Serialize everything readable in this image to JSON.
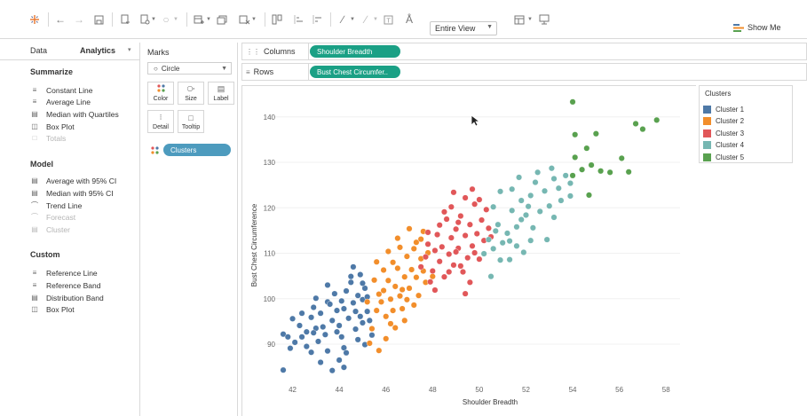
{
  "toolbar": {
    "view_select": "Entire View",
    "show_me_label": "Show Me"
  },
  "left_pane": {
    "tabs": [
      {
        "label": "Data"
      },
      {
        "label": "Analytics"
      }
    ],
    "sections": {
      "summarize": {
        "title": "Summarize",
        "items": [
          {
            "label": "Constant Line",
            "enabled": true
          },
          {
            "label": "Average Line",
            "enabled": true
          },
          {
            "label": "Median with Quartiles",
            "enabled": true
          },
          {
            "label": "Box Plot",
            "enabled": true
          },
          {
            "label": "Totals",
            "enabled": false
          }
        ]
      },
      "model": {
        "title": "Model",
        "items": [
          {
            "label": "Average with 95% CI",
            "enabled": true
          },
          {
            "label": "Median with 95% CI",
            "enabled": true
          },
          {
            "label": "Trend Line",
            "enabled": true
          },
          {
            "label": "Forecast",
            "enabled": false
          },
          {
            "label": "Cluster",
            "enabled": false
          }
        ]
      },
      "custom": {
        "title": "Custom",
        "items": [
          {
            "label": "Reference Line",
            "enabled": true
          },
          {
            "label": "Reference Band",
            "enabled": true
          },
          {
            "label": "Distribution Band",
            "enabled": true
          },
          {
            "label": "Box Plot",
            "enabled": true
          }
        ]
      }
    }
  },
  "marks_card": {
    "title": "Marks",
    "mark_type": "Circle",
    "properties": [
      "Color",
      "Size",
      "Label",
      "Detail",
      "Tooltip"
    ],
    "color_pill": "Clusters"
  },
  "shelves": {
    "columns_label": "Columns",
    "columns_pill": "Shoulder Breadth",
    "rows_label": "Rows",
    "rows_pill": "Bust Chest Circumfer.."
  },
  "legend": {
    "title": "Clusters",
    "items": [
      {
        "label": "Cluster 1",
        "color": "#4e79a7"
      },
      {
        "label": "Cluster 2",
        "color": "#f28e2b"
      },
      {
        "label": "Cluster 3",
        "color": "#e15759"
      },
      {
        "label": "Cluster 4",
        "color": "#76b7b2"
      },
      {
        "label": "Cluster 5",
        "color": "#59a14f"
      }
    ]
  },
  "chart_data": {
    "type": "scatter",
    "xlabel": "Shoulder Breadth",
    "ylabel": "Bust Chest Circumference",
    "xlim": [
      40.8,
      58.6
    ],
    "ylim": [
      82.0,
      146.2
    ],
    "xticks": [
      42,
      44,
      46,
      48,
      50,
      52,
      54,
      56,
      58
    ],
    "yticks": [
      90,
      100,
      110,
      120,
      130,
      140
    ],
    "grid": true,
    "series": [
      {
        "name": "Cluster 1",
        "color": "#4e79a7",
        "points": [
          [
            41.6,
            84.3
          ],
          [
            41.6,
            92.2
          ],
          [
            41.8,
            91.6
          ],
          [
            42.1,
            90.4
          ],
          [
            41.9,
            89.1
          ],
          [
            42.0,
            95.6
          ],
          [
            42.3,
            94.1
          ],
          [
            42.4,
            91.6
          ],
          [
            42.6,
            92.7
          ],
          [
            42.8,
            95.9
          ],
          [
            42.6,
            89.5
          ],
          [
            42.8,
            88.2
          ],
          [
            42.9,
            98.1
          ],
          [
            43.2,
            96.8
          ],
          [
            43.0,
            93.5
          ],
          [
            43.1,
            90.6
          ],
          [
            43.4,
            92.1
          ],
          [
            43.5,
            88.5
          ],
          [
            43.2,
            86.0
          ],
          [
            43.7,
            95.2
          ],
          [
            43.5,
            99.3
          ],
          [
            43.8,
            101.1
          ],
          [
            43.9,
            97.4
          ],
          [
            44.0,
            94.1
          ],
          [
            44.1,
            91.6
          ],
          [
            44.2,
            89.2
          ],
          [
            44.0,
            86.5
          ],
          [
            44.2,
            97.8
          ],
          [
            44.3,
            101.7
          ],
          [
            44.5,
            103.6
          ],
          [
            44.6,
            99.1
          ],
          [
            44.4,
            95.7
          ],
          [
            44.7,
            93.3
          ],
          [
            44.8,
            91.0
          ],
          [
            44.9,
            96.1
          ],
          [
            45.0,
            99.8
          ],
          [
            45.1,
            102.3
          ],
          [
            45.2,
            97.2
          ],
          [
            45.0,
            94.7
          ],
          [
            44.8,
            100.7
          ],
          [
            44.5,
            104.9
          ],
          [
            44.6,
            107.0
          ],
          [
            44.3,
            88.1
          ],
          [
            43.9,
            92.7
          ],
          [
            43.6,
            98.8
          ],
          [
            42.9,
            92.5
          ],
          [
            43.3,
            93.8
          ],
          [
            44.1,
            99.5
          ],
          [
            44.7,
            97.2
          ],
          [
            45.3,
            95.2
          ],
          [
            45.4,
            92.0
          ],
          [
            45.1,
            89.9
          ],
          [
            44.2,
            84.9
          ],
          [
            43.7,
            84.2
          ],
          [
            42.4,
            96.8
          ],
          [
            43.0,
            100.1
          ],
          [
            43.5,
            103.0
          ],
          [
            44.9,
            105.3
          ],
          [
            45.0,
            103.4
          ],
          [
            45.2,
            100.4
          ]
        ]
      },
      {
        "name": "Cluster 2",
        "color": "#f28e2b",
        "points": [
          [
            45.4,
            93.4
          ],
          [
            45.6,
            97.4
          ],
          [
            45.8,
            99.3
          ],
          [
            45.9,
            101.8
          ],
          [
            46.0,
            96.1
          ],
          [
            46.1,
            104.0
          ],
          [
            46.2,
            99.9
          ],
          [
            46.4,
            102.7
          ],
          [
            46.5,
            106.7
          ],
          [
            46.3,
            108.0
          ],
          [
            46.6,
            100.6
          ],
          [
            46.7,
            97.8
          ],
          [
            46.8,
            104.8
          ],
          [
            46.9,
            109.3
          ],
          [
            47.0,
            102.3
          ],
          [
            47.1,
            106.4
          ],
          [
            47.2,
            111.0
          ],
          [
            47.3,
            104.7
          ],
          [
            47.4,
            100.7
          ],
          [
            47.5,
            108.8
          ],
          [
            47.6,
            114.8
          ],
          [
            47.7,
            103.6
          ],
          [
            47.2,
            98.6
          ],
          [
            46.8,
            95.2
          ],
          [
            46.4,
            93.6
          ],
          [
            46.0,
            91.2
          ],
          [
            45.7,
            88.6
          ],
          [
            45.3,
            90.2
          ],
          [
            46.5,
            113.3
          ],
          [
            47.0,
            115.4
          ],
          [
            47.3,
            112.4
          ],
          [
            46.1,
            110.4
          ],
          [
            45.9,
            106.3
          ],
          [
            45.5,
            104.1
          ],
          [
            45.7,
            101.0
          ],
          [
            46.3,
            97.4
          ],
          [
            46.9,
            99.8
          ],
          [
            47.6,
            106.1
          ],
          [
            47.8,
            110.1
          ],
          [
            48.0,
            104.9
          ],
          [
            45.6,
            108.1
          ],
          [
            46.7,
            102.0
          ],
          [
            47.5,
            113.1
          ],
          [
            46.2,
            94.5
          ],
          [
            45.2,
            99.3
          ],
          [
            46.6,
            111.3
          ]
        ]
      },
      {
        "name": "Cluster 3",
        "color": "#e15759",
        "points": [
          [
            47.5,
            107.0
          ],
          [
            47.7,
            109.2
          ],
          [
            47.8,
            112.0
          ],
          [
            48.0,
            106.1
          ],
          [
            48.1,
            110.6
          ],
          [
            48.2,
            114.1
          ],
          [
            48.3,
            108.2
          ],
          [
            48.4,
            111.4
          ],
          [
            48.5,
            104.8
          ],
          [
            48.6,
            117.5
          ],
          [
            48.7,
            109.8
          ],
          [
            48.8,
            113.4
          ],
          [
            48.9,
            107.4
          ],
          [
            49.0,
            115.3
          ],
          [
            49.1,
            111.1
          ],
          [
            49.2,
            118.2
          ],
          [
            49.3,
            105.9
          ],
          [
            49.4,
            113.9
          ],
          [
            49.5,
            109.0
          ],
          [
            49.6,
            116.3
          ],
          [
            49.7,
            111.6
          ],
          [
            49.8,
            120.8
          ],
          [
            49.9,
            114.3
          ],
          [
            50.0,
            108.7
          ],
          [
            50.1,
            117.3
          ],
          [
            50.2,
            112.8
          ],
          [
            50.3,
            119.6
          ],
          [
            50.4,
            115.5
          ],
          [
            49.4,
            122.2
          ],
          [
            49.7,
            124.1
          ],
          [
            48.8,
            120.2
          ],
          [
            48.3,
            116.2
          ],
          [
            47.9,
            103.7
          ],
          [
            48.7,
            105.9
          ],
          [
            49.2,
            107.2
          ],
          [
            49.8,
            110.1
          ],
          [
            50.0,
            121.8
          ],
          [
            49.6,
            103.6
          ],
          [
            48.5,
            119.1
          ],
          [
            49.1,
            116.8
          ],
          [
            50.5,
            113.6
          ],
          [
            47.8,
            114.6
          ],
          [
            48.1,
            101.9
          ],
          [
            49.4,
            101.1
          ],
          [
            48.9,
            123.4
          ],
          [
            49.0,
            110.3
          ]
        ]
      },
      {
        "name": "Cluster 4",
        "color": "#76b7b2",
        "points": [
          [
            50.2,
            109.9
          ],
          [
            50.4,
            113.0
          ],
          [
            50.6,
            111.0
          ],
          [
            50.8,
            116.3
          ],
          [
            51.0,
            112.3
          ],
          [
            51.2,
            114.4
          ],
          [
            51.4,
            119.4
          ],
          [
            51.6,
            115.8
          ],
          [
            51.8,
            121.6
          ],
          [
            52.0,
            118.4
          ],
          [
            52.2,
            122.7
          ],
          [
            52.3,
            115.6
          ],
          [
            52.4,
            125.6
          ],
          [
            52.6,
            119.2
          ],
          [
            52.8,
            123.7
          ],
          [
            53.0,
            120.4
          ],
          [
            53.2,
            126.4
          ],
          [
            53.4,
            124.3
          ],
          [
            53.5,
            121.6
          ],
          [
            53.7,
            127.1
          ],
          [
            53.9,
            125.4
          ],
          [
            52.9,
            113.0
          ],
          [
            53.2,
            117.9
          ],
          [
            51.3,
            108.6
          ],
          [
            51.6,
            111.6
          ],
          [
            51.7,
            126.7
          ],
          [
            51.4,
            124.1
          ],
          [
            50.6,
            120.2
          ],
          [
            50.9,
            123.6
          ],
          [
            52.5,
            127.8
          ],
          [
            53.1,
            128.7
          ],
          [
            52.2,
            112.8
          ],
          [
            50.9,
            108.5
          ],
          [
            50.7,
            114.9
          ],
          [
            51.3,
            112.7
          ],
          [
            51.8,
            117.4
          ],
          [
            52.1,
            120.3
          ],
          [
            53.9,
            122.6
          ],
          [
            50.5,
            104.9
          ],
          [
            51.9,
            110.2
          ]
        ]
      },
      {
        "name": "Cluster 5",
        "color": "#59a14f",
        "points": [
          [
            54.0,
            127.1
          ],
          [
            54.1,
            131.1
          ],
          [
            54.4,
            128.4
          ],
          [
            54.6,
            133.1
          ],
          [
            54.8,
            129.4
          ],
          [
            54.7,
            122.8
          ],
          [
            55.0,
            136.3
          ],
          [
            55.2,
            128.1
          ],
          [
            55.6,
            127.8
          ],
          [
            56.1,
            130.9
          ],
          [
            56.4,
            127.9
          ],
          [
            56.7,
            138.5
          ],
          [
            57.0,
            137.3
          ],
          [
            57.6,
            139.3
          ],
          [
            54.1,
            136.1
          ],
          [
            54.0,
            143.3
          ]
        ]
      }
    ]
  }
}
